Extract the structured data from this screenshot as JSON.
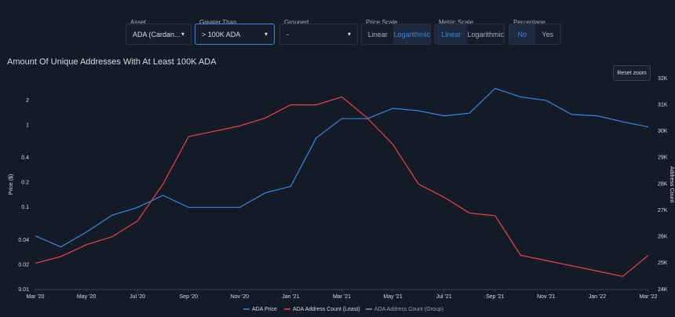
{
  "controls": [
    {
      "label": "Asset",
      "type": "dropdown",
      "value": "ADA (Cardan..."
    },
    {
      "label": "Greater Than",
      "type": "dropdown",
      "value": "> 100K ADA",
      "focused": true
    },
    {
      "label": "Grouped",
      "type": "dropdown",
      "value": "-"
    },
    {
      "label": "Price Scale",
      "type": "toggle",
      "options": [
        "Linear",
        "Logarithmic"
      ],
      "selected": 1
    },
    {
      "label": "Metric Scale",
      "type": "toggle",
      "options": [
        "Linear",
        "Logarithmic"
      ],
      "selected": 0
    },
    {
      "label": "Percentage",
      "type": "toggle",
      "options": [
        "No",
        "Yes"
      ],
      "selected": 0
    }
  ],
  "reset_zoom": "Reset zoom",
  "chart_data": {
    "type": "line",
    "title": "Amount Of Unique Addresses With At Least 100K ADA",
    "y_label": "Price ($)",
    "y2_label": "Address Count",
    "categories": [
      "Mar '20",
      null,
      "May '20",
      null,
      "Jul '20",
      null,
      "Sep '20",
      null,
      "Nov '20",
      null,
      "Jan '21",
      null,
      "Mar '21",
      null,
      "May '21",
      null,
      "Jul '21",
      null,
      "Sep '21",
      null,
      "Nov '21",
      null,
      "Jan '22",
      null,
      "Mar '22"
    ],
    "y_scale": "log",
    "ylim": [
      0.01,
      3.7
    ],
    "yticks": [
      0.01,
      0.02,
      0.04,
      0.1,
      0.2,
      0.4,
      1,
      2
    ],
    "y2lim": [
      24000,
      32000
    ],
    "y2ticks": [
      {
        "value": 24000,
        "label": "24K"
      },
      {
        "value": 25000,
        "label": "25K"
      },
      {
        "value": 26000,
        "label": "26K"
      },
      {
        "value": 27000,
        "label": "27K"
      },
      {
        "value": 28000,
        "label": "28K"
      },
      {
        "value": 29000,
        "label": "29K"
      },
      {
        "value": 30000,
        "label": "30K"
      },
      {
        "value": 31000,
        "label": "31K"
      },
      {
        "value": 32000,
        "label": "32K"
      }
    ],
    "grid": false,
    "series": [
      {
        "name": "ADA Price",
        "color": "#3a86e0",
        "values": [
          0.045,
          0.033,
          0.05,
          0.08,
          0.1,
          0.14,
          0.1,
          0.1,
          0.1,
          0.15,
          0.18,
          0.7,
          1.2,
          1.2,
          1.6,
          1.5,
          1.3,
          1.4,
          2.8,
          2.2,
          2.0,
          1.35,
          1.3,
          1.1,
          0.95
        ]
      },
      {
        "name": "ADA Address Count (Least)",
        "color": "#e0464c",
        "axis": "y2",
        "values": [
          25000,
          25250,
          25700,
          26000,
          26600,
          28000,
          29800,
          30000,
          30200,
          30500,
          31000,
          31000,
          31300,
          30500,
          29500,
          28000,
          27500,
          26900,
          26800,
          25300,
          25100,
          24900,
          24700,
          24500,
          25300
        ]
      },
      {
        "name": "ADA Address Count (Group)",
        "color": "#8a8f99",
        "axis": "y2",
        "values": [
          null,
          null,
          null,
          null,
          null,
          null,
          null,
          null,
          null,
          null,
          null,
          null,
          null,
          null,
          null,
          null,
          null,
          null,
          null,
          null,
          null,
          null,
          null,
          null,
          null
        ]
      }
    ]
  }
}
